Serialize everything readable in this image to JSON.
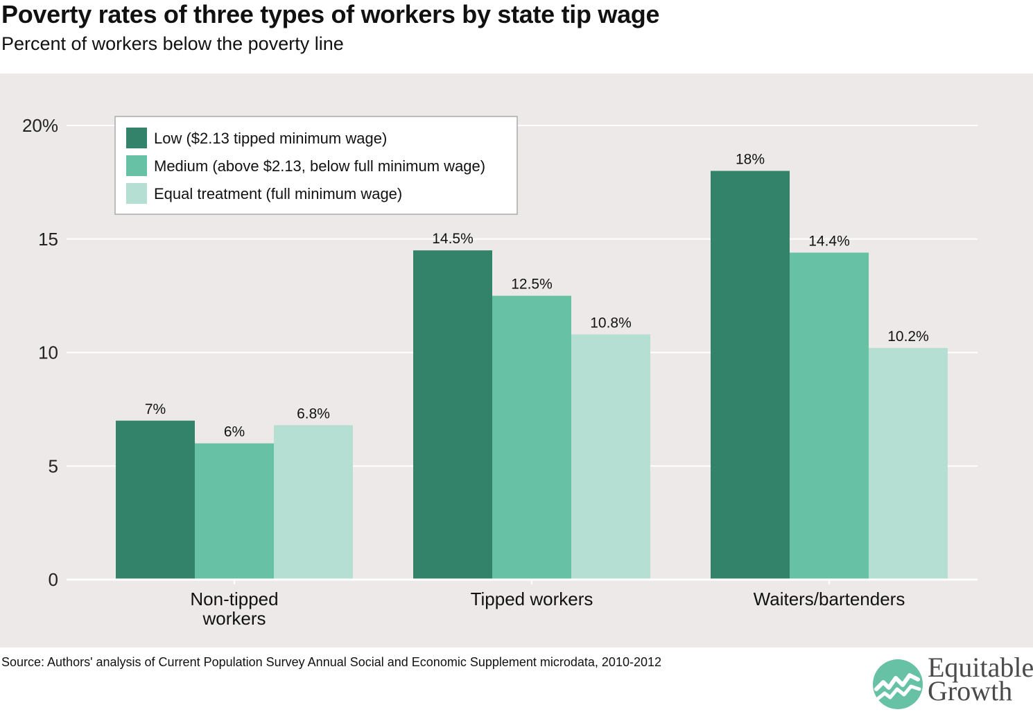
{
  "header": {
    "title": "Poverty rates of three types of workers by state tip wage",
    "subtitle": "Percent of workers below the poverty line"
  },
  "footer": {
    "source": "Source: Authors' analysis of Current Population Survey Annual Social and Economic Supplement microdata, 2010-2012"
  },
  "logo": {
    "line1": "Equitable",
    "line2": "Growth"
  },
  "colors": {
    "panel_background": "#ede9e8",
    "low": "#33836b",
    "medium": "#67c2a5",
    "equal": "#b5dfd2",
    "logo_mark": "#67c2a5"
  },
  "chart_data": {
    "type": "bar",
    "categories": [
      [
        "Non-tipped",
        "workers"
      ],
      [
        "Tipped workers"
      ],
      [
        "Waiters/bartenders"
      ]
    ],
    "series": [
      {
        "name": "Low ($2.13 tipped minimum wage)",
        "color": "#33836b",
        "values": [
          7,
          14.5,
          18
        ],
        "labels": [
          "7%",
          "14.5%",
          "18%"
        ]
      },
      {
        "name": "Medium (above $2.13, below full minimum wage)",
        "color": "#67c2a5",
        "values": [
          6,
          12.5,
          14.4
        ],
        "labels": [
          "6%",
          "12.5%",
          "14.4%"
        ]
      },
      {
        "name": "Equal treatment (full minimum wage)",
        "color": "#b5dfd2",
        "values": [
          6.8,
          10.8,
          10.2
        ],
        "labels": [
          "6.8%",
          "10.8%",
          "10.2%"
        ]
      }
    ],
    "ylim": [
      0,
      20
    ],
    "yticks": [
      0,
      5,
      10,
      15,
      20
    ],
    "ytick_labels": [
      "0",
      "5",
      "10",
      "15",
      "20%"
    ],
    "grid": true,
    "legend_position": "top-left"
  }
}
